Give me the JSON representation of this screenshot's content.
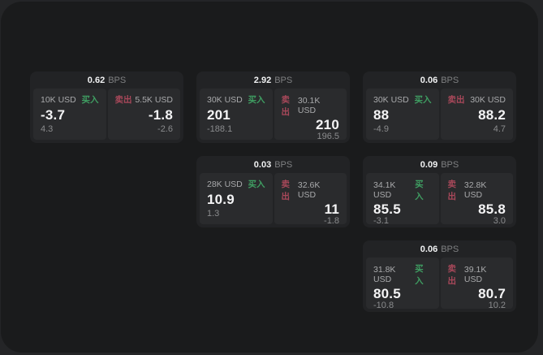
{
  "page": {
    "bps_unit": "BPS",
    "buy_label": "买入",
    "sell_label": "卖出",
    "colors": {
      "panel_bg": "#1a1b1c",
      "card_bg": "#222325",
      "cell_bg": "#2a2b2d",
      "buy_accent": "#3f9e62",
      "sell_accent": "#a8485a"
    }
  },
  "cards": [
    {
      "bps": "0.62",
      "buy": {
        "amount": "10K USD",
        "price": "-3.7",
        "delta": "4.3"
      },
      "sell": {
        "amount": "5.5K USD",
        "price": "-1.8",
        "delta": "-2.6"
      }
    },
    {
      "bps": "2.92",
      "buy": {
        "amount": "30K USD",
        "price": "201",
        "delta": "-188.1"
      },
      "sell": {
        "amount": "30.1K USD",
        "price": "210",
        "delta": "196.5"
      }
    },
    {
      "bps": "0.06",
      "buy": {
        "amount": "30K USD",
        "price": "88",
        "delta": "-4.9"
      },
      "sell": {
        "amount": "30K USD",
        "price": "88.2",
        "delta": "4.7"
      }
    },
    {
      "bps": "0.03",
      "buy": {
        "amount": "28K USD",
        "price": "10.9",
        "delta": "1.3"
      },
      "sell": {
        "amount": "32.6K USD",
        "price": "11",
        "delta": "-1.8"
      }
    },
    {
      "bps": "0.09",
      "buy": {
        "amount": "34.1K USD",
        "price": "85.5",
        "delta": "-3.1"
      },
      "sell": {
        "amount": "32.8K USD",
        "price": "85.8",
        "delta": "3.0"
      }
    },
    {
      "bps": "0.06",
      "buy": {
        "amount": "31.8K USD",
        "price": "80.5",
        "delta": "-10.8"
      },
      "sell": {
        "amount": "39.1K USD",
        "price": "80.7",
        "delta": "10.2"
      }
    }
  ]
}
